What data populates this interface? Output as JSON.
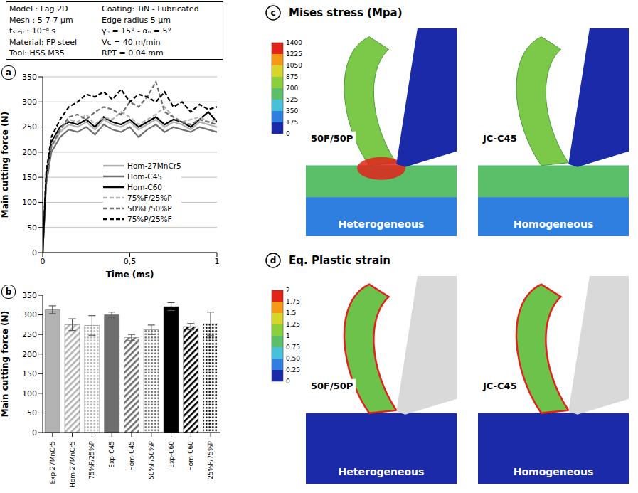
{
  "info_box": {
    "left": [
      "Model : Lag 2D",
      "Mesh : 5-7-7 μm",
      "tₛₜₑₚ : 10⁻⁸ s",
      "Material: FP steel",
      "Tool: HSS M35"
    ],
    "right": [
      "Coating: TiN - Lubricated",
      "Edge radius 5 μm",
      "γₙ = 15° - αₙ = 5°",
      "Vc = 40 m/min",
      "RPT = 0.04 mm"
    ]
  },
  "chart_data": [
    {
      "panel_label": "a",
      "type": "line",
      "xlabel": "Time (ms)",
      "ylabel": "Main cutting force (N)",
      "x": [
        0,
        0.02,
        0.05,
        0.1,
        0.15,
        0.2,
        0.25,
        0.3,
        0.35,
        0.4,
        0.45,
        0.5,
        0.55,
        0.6,
        0.65,
        0.7,
        0.75,
        0.8,
        0.85,
        0.9,
        0.95,
        1
      ],
      "series": [
        {
          "name": "Hom-27MnCr5",
          "color": "#b3b3b3",
          "line_style": "solid",
          "values": [
            0,
            140,
            210,
            240,
            255,
            250,
            260,
            245,
            265,
            255,
            250,
            260,
            245,
            255,
            265,
            250,
            260,
            255,
            245,
            260,
            255,
            250
          ]
        },
        {
          "name": "Hom-C45",
          "color": "#707070",
          "line_style": "solid",
          "values": [
            0,
            135,
            200,
            230,
            245,
            240,
            250,
            235,
            255,
            245,
            240,
            250,
            230,
            245,
            255,
            240,
            250,
            245,
            240,
            250,
            245,
            240
          ]
        },
        {
          "name": "Hom-C60",
          "color": "#000000",
          "line_style": "solid",
          "values": [
            0,
            150,
            220,
            250,
            260,
            255,
            265,
            250,
            270,
            260,
            255,
            265,
            250,
            260,
            270,
            255,
            265,
            260,
            250,
            265,
            280,
            260
          ]
        },
        {
          "name": "75%F/25%P",
          "color": "#b3b3b3",
          "line_style": "dashed",
          "values": [
            0,
            145,
            215,
            245,
            265,
            260,
            275,
            255,
            270,
            265,
            280,
            270,
            255,
            265,
            275,
            290,
            270,
            260,
            265,
            270,
            260,
            265
          ]
        },
        {
          "name": "50%F/50%P",
          "color": "#707070",
          "line_style": "dashed",
          "values": [
            0,
            140,
            210,
            245,
            270,
            275,
            265,
            280,
            290,
            285,
            275,
            300,
            290,
            310,
            340,
            280,
            270,
            260,
            255,
            265,
            260,
            255
          ]
        },
        {
          "name": "75%P/25%F",
          "color": "#000000",
          "line_style": "dashed",
          "values": [
            0,
            160,
            230,
            265,
            290,
            300,
            315,
            310,
            320,
            305,
            325,
            300,
            315,
            310,
            300,
            320,
            290,
            300,
            280,
            295,
            285,
            290
          ]
        }
      ],
      "xlim": [
        0,
        1
      ],
      "xticks": [
        0,
        {
          "value": 0.5,
          "label": "0,5"
        },
        1
      ],
      "ylim": [
        0,
        350
      ],
      "yticks": [
        0,
        50,
        100,
        150,
        200,
        250,
        300,
        350
      ],
      "grid": true,
      "legend": "lower right"
    },
    {
      "panel_label": "b",
      "type": "bar",
      "ylabel": "Main cutting force (N)",
      "categories": [
        "Exp-27MnCr5",
        "Hom-27MnCr5",
        "75%F/25%P",
        "Exp-C45",
        "Hom-C45",
        "50%F/50%P",
        "Exp-C60",
        "Hom-C60",
        "25%F/75%P"
      ],
      "values": [
        313,
        275,
        273,
        300,
        242,
        262,
        321,
        270,
        277
      ],
      "errors": [
        10,
        15,
        25,
        7,
        8,
        12,
        10,
        8,
        30
      ],
      "colors": [
        "#b3b3b3",
        "#b3b3b3",
        "#b3b3b3",
        "#6e6e6e",
        "#6e6e6e",
        "#6e6e6e",
        "#000000",
        "#000000",
        "#000000"
      ],
      "ylim": [
        0,
        350
      ],
      "yticks": [
        0,
        50,
        100,
        150,
        200,
        250,
        300,
        350
      ],
      "grid": false
    }
  ],
  "panels": [
    {
      "panel_label": "c",
      "title": "Mises stress (Mpa)",
      "colorbar": {
        "range": [
          0,
          1400
        ],
        "ticks": [
          0,
          175,
          350,
          525,
          700,
          875,
          1050,
          1225,
          1400
        ]
      },
      "images": [
        {
          "label": "50F/50P",
          "caption": "Heterogeneous"
        },
        {
          "label": "JC-C45",
          "caption": "Homogeneous"
        }
      ]
    },
    {
      "panel_label": "d",
      "title": "Eq. Plastic strain",
      "colorbar": {
        "range": [
          0,
          2
        ],
        "ticks": [
          0,
          0.25,
          {
            "value": 0.5,
            "label": "0.50"
          },
          0.75,
          1,
          1.25,
          1.5,
          1.75,
          2
        ]
      },
      "images": [
        {
          "label": "50F/50P",
          "caption": "Heterogeneous"
        },
        {
          "label": "JC-C45",
          "caption": "Homogeneous"
        }
      ]
    }
  ]
}
